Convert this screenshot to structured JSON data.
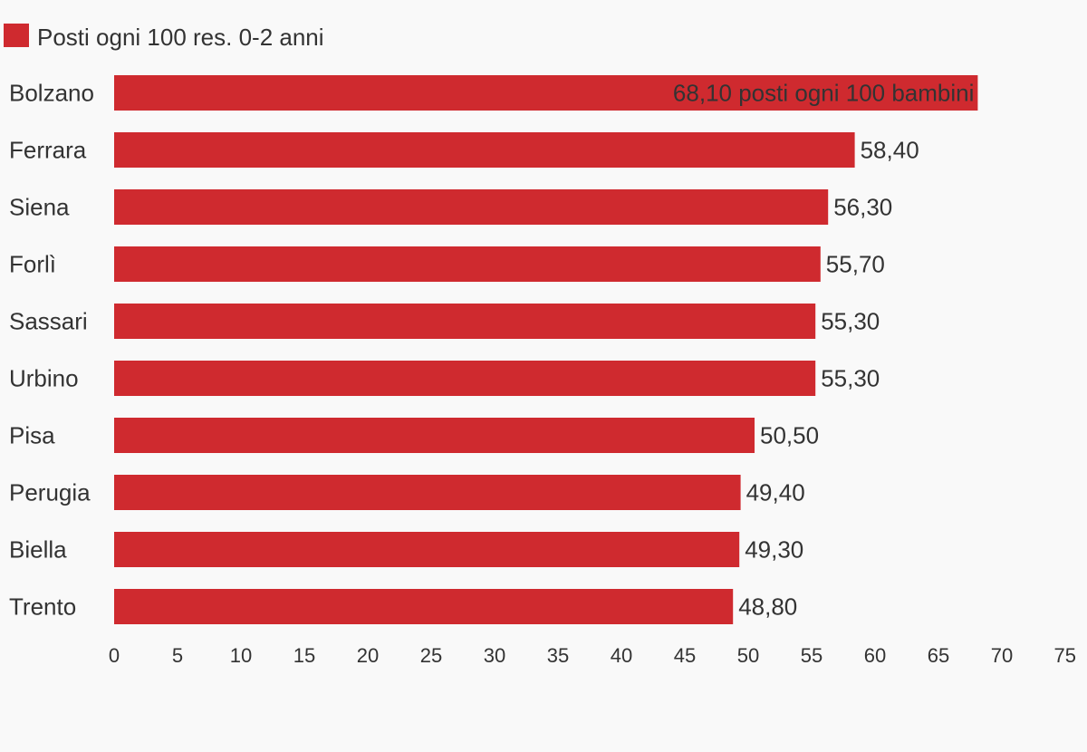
{
  "chart_data": {
    "type": "bar",
    "orientation": "horizontal",
    "legend": {
      "position": "top-left",
      "entries": [
        {
          "name": "Posti ogni 100 res. 0-2 anni",
          "color": "#cf2a2f"
        }
      ]
    },
    "categories": [
      "Bolzano",
      "Ferrara",
      "Siena",
      "Forlì",
      "Sassari",
      "Urbino",
      "Pisa",
      "Perugia",
      "Biella",
      "Trento"
    ],
    "series": [
      {
        "name": "Posti ogni 100 res. 0-2 anni",
        "color": "#cf2a2f",
        "values": [
          68.1,
          58.4,
          56.3,
          55.7,
          55.3,
          55.3,
          50.5,
          49.4,
          49.3,
          48.8
        ],
        "labels": [
          "68,10 posti ogni 100 bambini",
          "58,40",
          "56,30",
          "55,70",
          "55,30",
          "55,30",
          "50,50",
          "49,40",
          "49,30",
          "48,80"
        ]
      }
    ],
    "xlim": [
      0,
      75
    ],
    "xticks": [
      "0",
      "5",
      "10",
      "15",
      "20",
      "25",
      "30",
      "35",
      "40",
      "45",
      "50",
      "55",
      "60",
      "65",
      "70",
      "75"
    ],
    "grid": false,
    "title": "",
    "xlabel": "",
    "ylabel": ""
  }
}
